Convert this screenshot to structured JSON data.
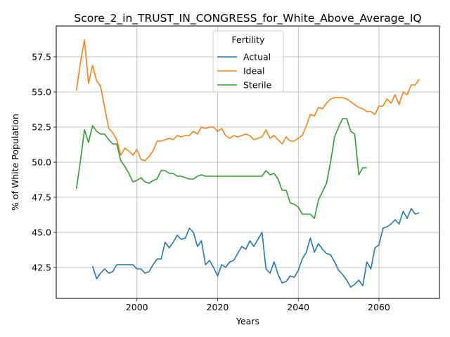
{
  "chart_data": {
    "type": "line",
    "title": "Score_2_in_TRUST_IN_CONGRESS_for_White_Above_Average_IQ",
    "xlabel": "Years",
    "ylabel": "% of White Population",
    "xlim": [
      1980,
      2075
    ],
    "ylim": [
      40.3,
      59.7
    ],
    "xticks": [
      2000,
      2020,
      2040,
      2060
    ],
    "xtick_labels": [
      "2000",
      "2020",
      "2040",
      "2060"
    ],
    "yticks": [
      42.5,
      45.0,
      47.5,
      50.0,
      52.5,
      55.0,
      57.5
    ],
    "ytick_labels": [
      "42.5",
      "45.0",
      "47.5",
      "50.0",
      "52.5",
      "55.0",
      "57.5"
    ],
    "grid": true,
    "legend": {
      "title": "Fertility",
      "position": "upper-center"
    },
    "series": [
      {
        "name": "Actual",
        "color": "#1f77b4",
        "x": [
          1989,
          1990,
          1991,
          1992,
          1993,
          1994,
          1995,
          1996,
          1997,
          1998,
          1999,
          2000,
          2001,
          2002,
          2003,
          2004,
          2005,
          2006,
          2007,
          2008,
          2009,
          2010,
          2011,
          2012,
          2013,
          2014,
          2015,
          2016,
          2017,
          2018,
          2019,
          2020,
          2021,
          2022,
          2023,
          2024,
          2025,
          2026,
          2027,
          2028,
          2029,
          2030,
          2031,
          2032,
          2033,
          2034,
          2035,
          2036,
          2037,
          2038,
          2039,
          2040,
          2041,
          2042,
          2043,
          2044,
          2045,
          2046,
          2047,
          2048,
          2049,
          2050,
          2051,
          2052,
          2053,
          2054,
          2055,
          2056,
          2057,
          2058,
          2059,
          2060,
          2061,
          2062,
          2063,
          2064,
          2065,
          2066,
          2067,
          2068,
          2069,
          2070
        ],
        "values": [
          42.6,
          41.7,
          42.1,
          42.4,
          42.1,
          42.2,
          42.7,
          42.7,
          42.7,
          42.7,
          42.7,
          42.4,
          42.4,
          42.1,
          42.2,
          42.7,
          43.1,
          43.1,
          44.3,
          43.9,
          44.3,
          44.8,
          44.5,
          44.6,
          45.3,
          45.0,
          44.0,
          44.4,
          42.7,
          43.0,
          42.5,
          41.9,
          42.7,
          42.5,
          42.9,
          43.0,
          43.5,
          44.0,
          43.8,
          44.4,
          44.0,
          44.5,
          45.0,
          42.4,
          42.1,
          42.9,
          42.0,
          41.4,
          41.5,
          41.9,
          41.8,
          42.3,
          43.1,
          43.6,
          44.6,
          43.6,
          44.2,
          43.8,
          43.5,
          43.4,
          42.9,
          42.3,
          42.0,
          41.6,
          41.1,
          41.3,
          41.6,
          41.2,
          42.9,
          42.4,
          43.9,
          44.1,
          45.3,
          45.4,
          45.6,
          45.9,
          45.6,
          46.5,
          46.0,
          46.7,
          46.3,
          46.4
        ]
      },
      {
        "name": "Ideal",
        "color": "#ff7f0e",
        "x": [
          1985,
          1986,
          1987,
          1988,
          1989,
          1990,
          1991,
          1992,
          1993,
          1994,
          1995,
          1996,
          1997,
          1998,
          1999,
          2000,
          2001,
          2002,
          2003,
          2004,
          2005,
          2006,
          2007,
          2008,
          2009,
          2010,
          2011,
          2012,
          2013,
          2014,
          2015,
          2016,
          2017,
          2018,
          2019,
          2020,
          2021,
          2022,
          2023,
          2024,
          2025,
          2026,
          2027,
          2028,
          2029,
          2030,
          2031,
          2032,
          2033,
          2034,
          2035,
          2036,
          2037,
          2038,
          2039,
          2040,
          2041,
          2042,
          2043,
          2044,
          2045,
          2046,
          2047,
          2048,
          2049,
          2050,
          2051,
          2052,
          2053,
          2054,
          2055,
          2056,
          2057,
          2058,
          2059,
          2060,
          2061,
          2062,
          2063,
          2064,
          2065,
          2066,
          2067,
          2068,
          2069,
          2070
        ],
        "values": [
          55.1,
          57.1,
          58.7,
          55.6,
          56.9,
          55.8,
          55.4,
          53.9,
          52.4,
          52.1,
          51.6,
          50.5,
          51.0,
          50.8,
          50.5,
          50.9,
          50.2,
          50.1,
          50.4,
          50.8,
          51.5,
          51.5,
          51.6,
          51.7,
          51.6,
          51.9,
          51.8,
          51.9,
          51.9,
          52.2,
          52.0,
          52.5,
          52.4,
          52.5,
          52.5,
          52.2,
          52.4,
          51.9,
          51.7,
          51.9,
          51.8,
          51.9,
          52.0,
          51.9,
          51.6,
          51.7,
          51.8,
          52.3,
          51.7,
          51.9,
          51.6,
          51.3,
          51.8,
          51.5,
          51.5,
          51.7,
          51.9,
          52.6,
          53.4,
          53.3,
          53.9,
          53.8,
          54.2,
          54.5,
          54.6,
          54.6,
          54.6,
          54.5,
          54.3,
          54.1,
          53.9,
          53.8,
          53.6,
          53.6,
          53.4,
          54.0,
          54.0,
          54.5,
          54.2,
          54.8,
          54.1,
          55.0,
          54.8,
          55.5,
          55.5,
          55.9
        ]
      },
      {
        "name": "Sterile",
        "color": "#2ca02c",
        "x": [
          1985,
          1986,
          1987,
          1988,
          1989,
          1990,
          1991,
          1992,
          1993,
          1994,
          1995,
          1996,
          1997,
          1998,
          1999,
          2000,
          2001,
          2002,
          2003,
          2004,
          2005,
          2006,
          2007,
          2008,
          2009,
          2010,
          2011,
          2012,
          2013,
          2014,
          2015,
          2016,
          2017,
          2018,
          2019,
          2020,
          2021,
          2022,
          2023,
          2024,
          2025,
          2026,
          2027,
          2028,
          2029,
          2030,
          2031,
          2032,
          2033,
          2034,
          2035,
          2036,
          2037,
          2038,
          2039,
          2040,
          2041,
          2042,
          2043,
          2044,
          2045,
          2046,
          2047,
          2048,
          2049,
          2050,
          2051,
          2052,
          2053,
          2054,
          2055,
          2056,
          2057
        ],
        "values": [
          48.1,
          50.1,
          52.3,
          51.4,
          52.6,
          52.2,
          52.0,
          52.0,
          51.6,
          51.3,
          51.3,
          50.1,
          49.7,
          49.2,
          48.6,
          48.7,
          48.9,
          48.6,
          48.5,
          48.7,
          48.8,
          49.4,
          49.4,
          49.2,
          49.2,
          49.0,
          49.0,
          48.9,
          48.8,
          48.8,
          49.0,
          49.1,
          49.0,
          49.0,
          49.0,
          49.0,
          49.0,
          49.0,
          49.0,
          49.0,
          49.0,
          49.0,
          49.0,
          49.0,
          49.0,
          49.0,
          49.0,
          49.4,
          49.1,
          49.2,
          48.8,
          48.0,
          48.0,
          47.1,
          47.0,
          46.8,
          46.3,
          46.3,
          46.3,
          46.0,
          47.3,
          47.9,
          48.5,
          50.0,
          51.8,
          52.5,
          53.1,
          53.1,
          52.2,
          52.0,
          49.1,
          49.6,
          49.6
        ]
      }
    ]
  }
}
